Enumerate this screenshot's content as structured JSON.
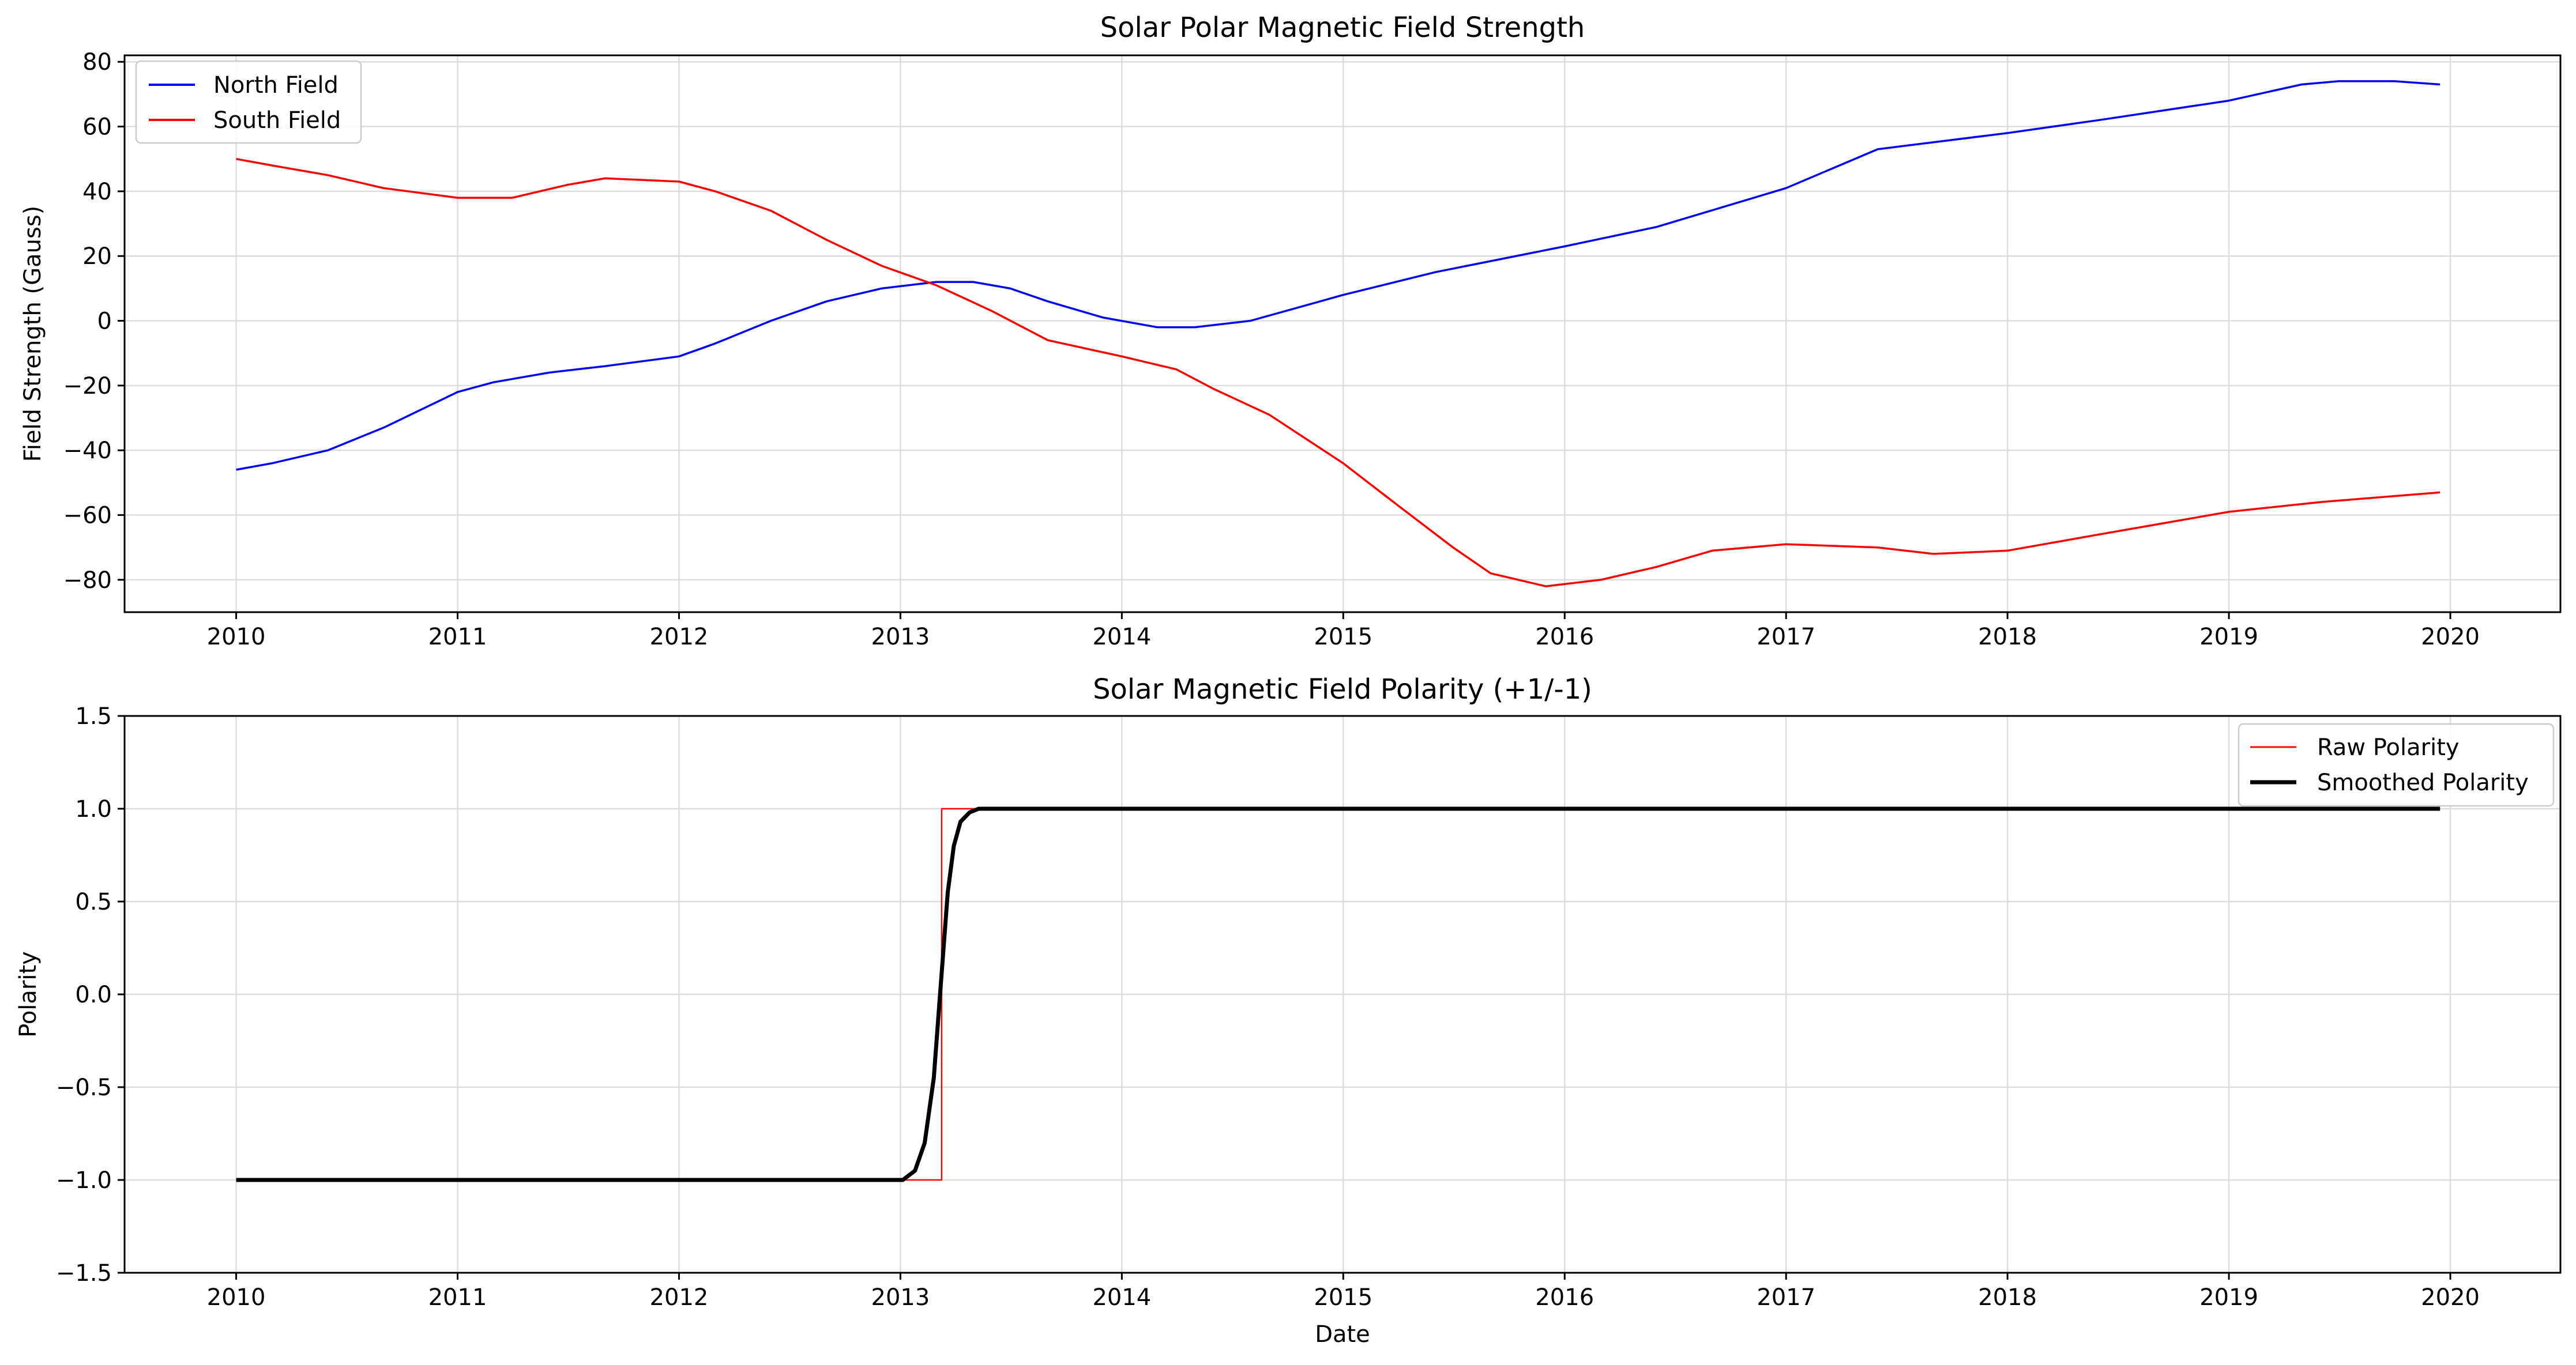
{
  "figure": {
    "top_title": "Solar Polar Magnetic Field Strength",
    "bottom_title": "Solar Magnetic Field Polarity (+1/-1)",
    "x_label": "Date"
  },
  "chart_data": [
    {
      "type": "line",
      "title": "Solar Polar Magnetic Field Strength",
      "xlabel": "",
      "ylabel": "Field Strength (Gauss)",
      "xlim": [
        "2009-07-01",
        "2020-07-01"
      ],
      "ylim": [
        -90,
        82
      ],
      "x_ticks": [
        "2010",
        "2011",
        "2012",
        "2013",
        "2014",
        "2015",
        "2016",
        "2017",
        "2018",
        "2019",
        "2020"
      ],
      "y_ticks": [
        "80",
        "60",
        "40",
        "20",
        "0",
        "−20",
        "−40",
        "−60",
        "−80"
      ],
      "y_tick_values": [
        80,
        60,
        40,
        20,
        0,
        -20,
        -40,
        -60,
        -80
      ],
      "grid": true,
      "legend": "top-left",
      "series": [
        {
          "name": "North Field",
          "color": "#0000ff",
          "x": [
            "2010-01-01",
            "2010-03-01",
            "2010-06-01",
            "2010-09-01",
            "2011-01-01",
            "2011-03-01",
            "2011-06-01",
            "2011-09-01",
            "2012-01-01",
            "2012-03-01",
            "2012-06-01",
            "2012-09-01",
            "2012-12-01",
            "2013-03-01",
            "2013-05-01",
            "2013-07-01",
            "2013-09-01",
            "2013-12-01",
            "2014-03-01",
            "2014-05-01",
            "2014-08-01",
            "2015-01-01",
            "2015-06-01",
            "2016-01-01",
            "2016-06-01",
            "2017-01-01",
            "2017-06-01",
            "2018-01-01",
            "2018-06-01",
            "2019-01-01",
            "2019-05-01",
            "2019-07-01",
            "2019-10-01",
            "2019-12-15"
          ],
          "values": [
            -46,
            -44,
            -40,
            -33,
            -22,
            -19,
            -16,
            -14,
            -11,
            -7,
            0,
            6,
            10,
            12,
            12,
            10,
            6,
            1,
            -2,
            -2,
            0,
            8,
            15,
            23,
            29,
            41,
            53,
            58,
            62,
            68,
            73,
            74,
            74,
            73
          ]
        },
        {
          "name": "South Field",
          "color": "#ff0000",
          "x": [
            "2010-01-01",
            "2010-03-01",
            "2010-06-01",
            "2010-09-01",
            "2011-01-01",
            "2011-04-01",
            "2011-07-01",
            "2011-09-01",
            "2012-01-01",
            "2012-03-01",
            "2012-06-01",
            "2012-09-01",
            "2012-12-01",
            "2013-03-01",
            "2013-06-01",
            "2013-09-01",
            "2014-01-01",
            "2014-04-01",
            "2014-06-01",
            "2014-09-01",
            "2015-01-01",
            "2015-04-01",
            "2015-07-01",
            "2015-09-01",
            "2015-12-01",
            "2016-03-01",
            "2016-06-01",
            "2016-09-01",
            "2017-01-01",
            "2017-06-01",
            "2017-09-01",
            "2018-01-01",
            "2018-06-01",
            "2019-01-01",
            "2019-06-01",
            "2019-12-15"
          ],
          "values": [
            50,
            48,
            45,
            41,
            38,
            38,
            42,
            44,
            43,
            40,
            34,
            25,
            17,
            11,
            3,
            -6,
            -11,
            -15,
            -21,
            -29,
            -44,
            -57,
            -70,
            -78,
            -82,
            -80,
            -76,
            -71,
            -69,
            -70,
            -72,
            -71,
            -66,
            -59,
            -56,
            -53
          ]
        }
      ]
    },
    {
      "type": "line",
      "title": "Solar Magnetic Field Polarity (+1/-1)",
      "xlabel": "Date",
      "ylabel": "Polarity",
      "xlim": [
        "2009-07-01",
        "2020-07-01"
      ],
      "ylim": [
        -1.5,
        1.5
      ],
      "x_ticks": [
        "2010",
        "2011",
        "2012",
        "2013",
        "2014",
        "2015",
        "2016",
        "2017",
        "2018",
        "2019",
        "2020"
      ],
      "y_ticks": [
        "1.5",
        "1.0",
        "0.5",
        "0.0",
        "−0.5",
        "−1.0",
        "−1.5"
      ],
      "y_tick_values": [
        1.5,
        1.0,
        0.5,
        0.0,
        -0.5,
        -1.0,
        -1.5
      ],
      "grid": true,
      "legend": "top-right",
      "series": [
        {
          "name": "Raw Polarity",
          "color": "#ff0000",
          "x": [
            "2010-01-01",
            "2013-03-10",
            "2013-03-10",
            "2019-12-15"
          ],
          "values": [
            -1,
            -1,
            1,
            1
          ]
        },
        {
          "name": "Smoothed Polarity",
          "color": "#000000",
          "x": [
            "2010-01-01",
            "2013-01-05",
            "2013-01-25",
            "2013-02-10",
            "2013-02-25",
            "2013-03-05",
            "2013-03-12",
            "2013-03-20",
            "2013-03-30",
            "2013-04-10",
            "2013-04-25",
            "2013-05-10",
            "2019-12-15"
          ],
          "values": [
            -1,
            -1,
            -0.95,
            -0.8,
            -0.45,
            -0.1,
            0.2,
            0.55,
            0.8,
            0.93,
            0.98,
            1,
            1
          ]
        }
      ]
    }
  ]
}
